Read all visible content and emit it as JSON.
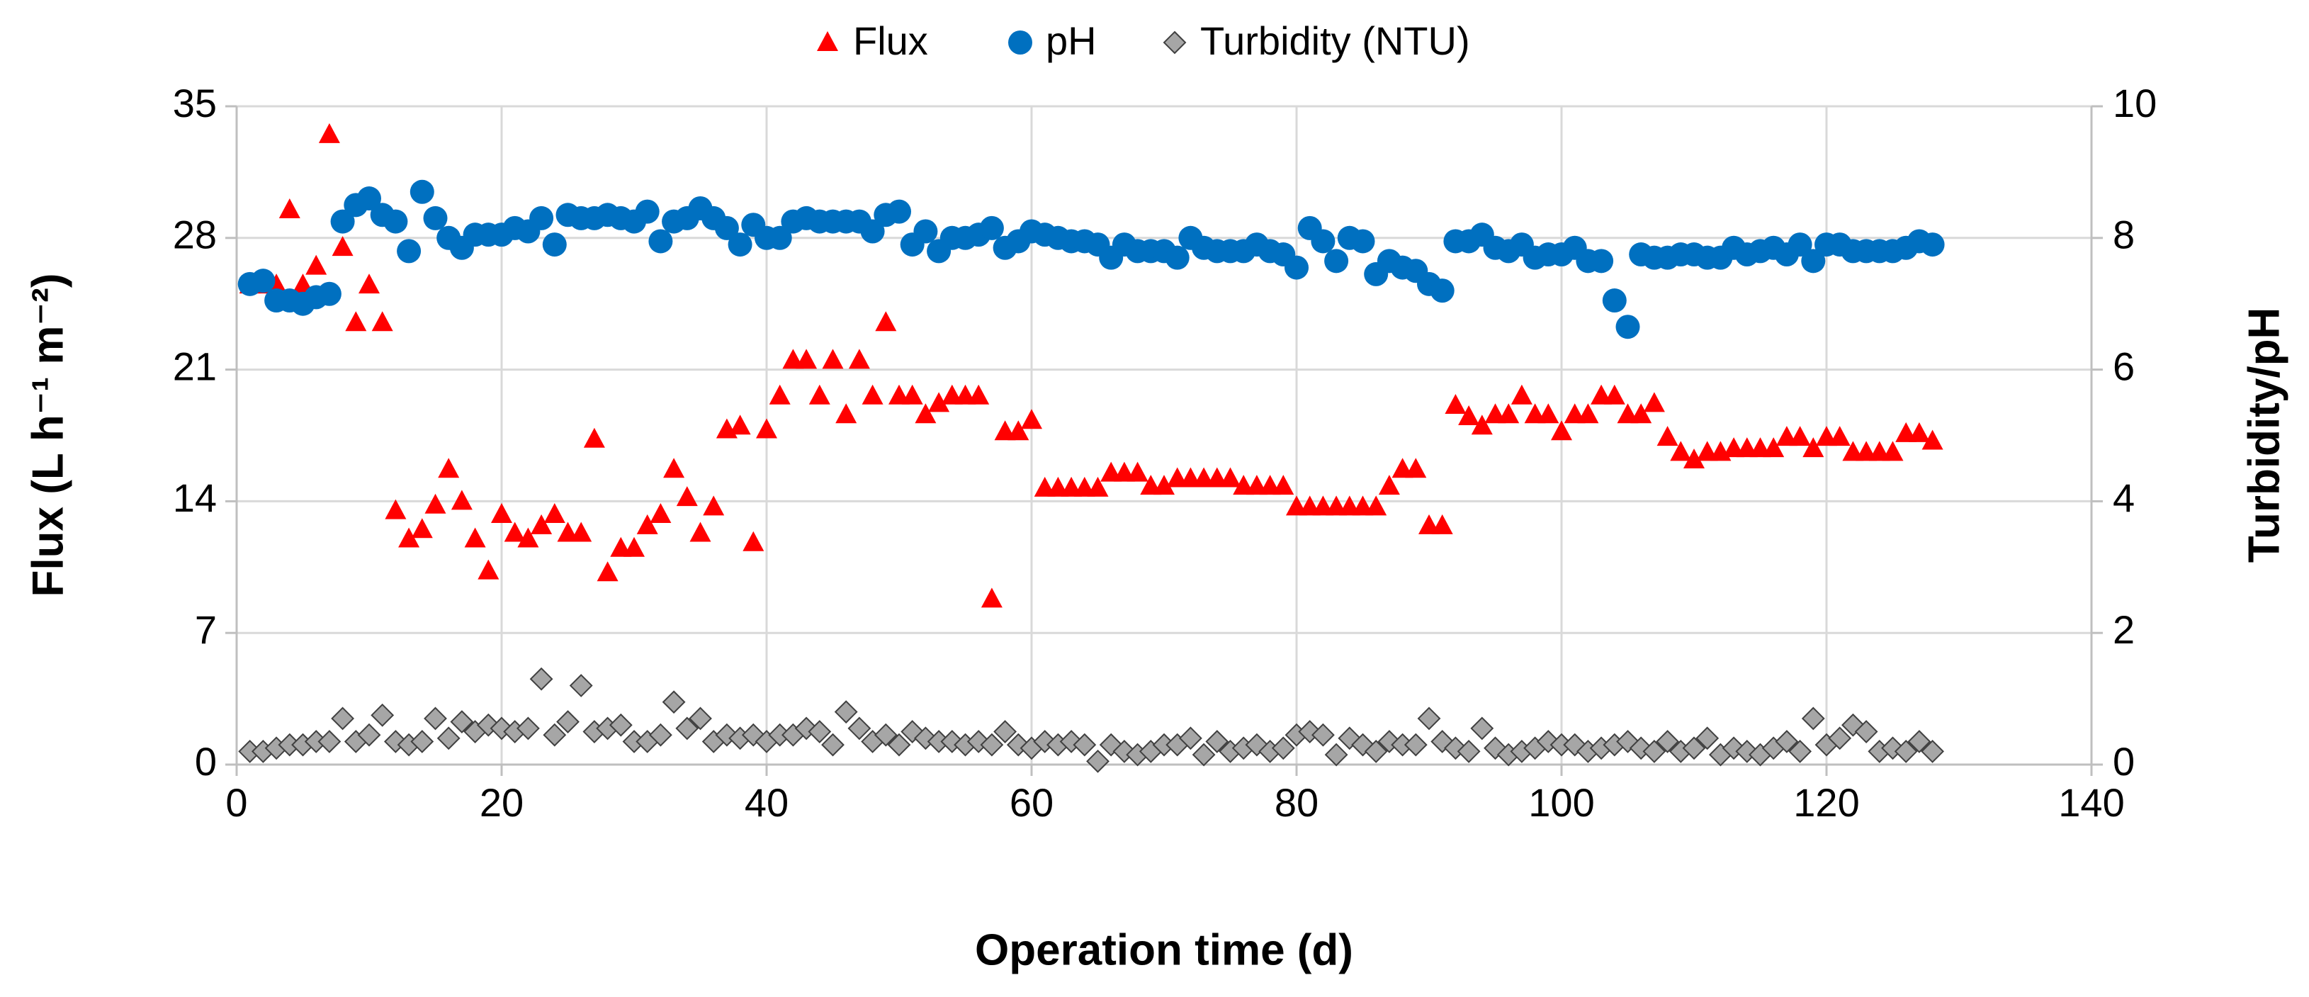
{
  "chart_data": {
    "type": "scatter",
    "xlabel": "Operation time (d)",
    "ylabel": "Flux (L h⁻¹ m⁻²)",
    "y2label": "Turbidity/pH",
    "x": [
      1,
      2,
      3,
      4,
      5,
      6,
      7,
      8,
      9,
      10,
      11,
      12,
      13,
      14,
      15,
      16,
      17,
      18,
      19,
      20,
      21,
      22,
      23,
      24,
      25,
      26,
      27,
      28,
      29,
      30,
      31,
      32,
      33,
      34,
      35,
      36,
      37,
      38,
      39,
      40,
      41,
      42,
      43,
      44,
      45,
      46,
      47,
      48,
      49,
      50,
      51,
      52,
      53,
      54,
      55,
      56,
      57,
      58,
      59,
      60,
      61,
      62,
      63,
      64,
      65,
      66,
      67,
      68,
      69,
      70,
      71,
      72,
      73,
      74,
      75,
      76,
      77,
      78,
      79,
      80,
      81,
      82,
      83,
      84,
      85,
      86,
      87,
      88,
      89,
      90,
      91,
      92,
      93,
      94,
      95,
      96,
      97,
      98,
      99,
      100,
      101,
      102,
      103,
      104,
      105,
      106,
      107,
      108,
      109,
      110,
      111,
      112,
      113,
      114,
      115,
      116,
      117,
      118,
      119,
      120,
      121,
      122,
      123,
      124,
      125,
      126,
      127,
      128
    ],
    "series": [
      {
        "name": "Flux",
        "color": "#ff0000",
        "marker": "triangle",
        "values": [
          25.5,
          25.5,
          25.5,
          29.5,
          25.5,
          26.5,
          33.5,
          27.5,
          23.5,
          25.5,
          23.5,
          13.5,
          12,
          12.5,
          13.8,
          15.7,
          14,
          12,
          10.3,
          13.3,
          12.3,
          12,
          12.7,
          13.3,
          12.3,
          12.3,
          17.3,
          10.2,
          11.5,
          11.5,
          12.7,
          13.3,
          15.7,
          14.2,
          12.3,
          13.7,
          17.8,
          18,
          11.8,
          17.8,
          19.6,
          21.5,
          21.5,
          19.6,
          21.5,
          18.6,
          21.5,
          19.6,
          23.5,
          19.6,
          19.6,
          18.6,
          19.2,
          19.6,
          19.6,
          19.6,
          8.8,
          17.7,
          17.7,
          18.3,
          14.7,
          14.7,
          14.7,
          14.7,
          14.7,
          15.5,
          15.5,
          15.5,
          14.8,
          14.8,
          15.2,
          15.2,
          15.2,
          15.2,
          15.2,
          14.8,
          14.8,
          14.8,
          14.8,
          13.7,
          13.7,
          13.7,
          13.7,
          13.7,
          13.7,
          13.7,
          14.8,
          15.7,
          15.7,
          12.7,
          12.7,
          19.1,
          18.5,
          18,
          18.6,
          18.6,
          19.6,
          18.6,
          18.6,
          17.7,
          18.6,
          18.6,
          19.6,
          19.6,
          18.6,
          18.6,
          19.2,
          17.4,
          16.6,
          16.2,
          16.6,
          16.6,
          16.8,
          16.8,
          16.8,
          16.8,
          17.4,
          17.4,
          16.8,
          17.4,
          17.4,
          16.6,
          16.6,
          16.6,
          16.6,
          17.6,
          17.6,
          17.2
        ]
      },
      {
        "name": "pH",
        "color": "#0070c0",
        "marker": "circle",
        "axis": "y2",
        "values": [
          7.3,
          7.35,
          7.05,
          7.05,
          7.0,
          7.1,
          7.15,
          8.25,
          8.5,
          8.6,
          8.35,
          8.25,
          7.8,
          8.7,
          8.3,
          8.0,
          7.85,
          8.05,
          8.05,
          8.05,
          8.15,
          8.1,
          8.3,
          7.9,
          8.35,
          8.3,
          8.3,
          8.35,
          8.3,
          8.25,
          8.4,
          7.95,
          8.25,
          8.3,
          8.45,
          8.3,
          8.15,
          7.9,
          8.2,
          8.0,
          8.0,
          8.25,
          8.3,
          8.25,
          8.25,
          8.25,
          8.25,
          8.1,
          8.35,
          8.4,
          7.9,
          8.1,
          7.8,
          8.0,
          8.0,
          8.05,
          8.15,
          7.85,
          7.95,
          8.1,
          8.05,
          8.0,
          7.95,
          7.95,
          7.9,
          7.7,
          7.9,
          7.8,
          7.8,
          7.8,
          7.7,
          8.0,
          7.85,
          7.8,
          7.8,
          7.8,
          7.9,
          7.8,
          7.75,
          7.55,
          8.15,
          7.95,
          7.65,
          8.0,
          7.95,
          7.45,
          7.65,
          7.55,
          7.5,
          7.3,
          7.2,
          7.95,
          7.95,
          8.05,
          7.85,
          7.8,
          7.9,
          7.7,
          7.75,
          7.75,
          7.85,
          7.65,
          7.65,
          7.05,
          6.65,
          7.75,
          7.7,
          7.7,
          7.75,
          7.75,
          7.7,
          7.7,
          7.85,
          7.75,
          7.8,
          7.85,
          7.75,
          7.9,
          7.65,
          7.9,
          7.9,
          7.8,
          7.8,
          7.8,
          7.8,
          7.85,
          7.95,
          7.9
        ]
      },
      {
        "name": "Turbidity (NTU)",
        "color": "#a6a6a6",
        "marker": "diamond",
        "axis": "y2",
        "values": [
          0.2,
          0.2,
          0.25,
          0.3,
          0.3,
          0.35,
          0.35,
          0.7,
          0.35,
          0.45,
          0.75,
          0.35,
          0.3,
          0.35,
          0.7,
          0.4,
          0.65,
          0.5,
          0.6,
          0.55,
          0.5,
          0.55,
          1.3,
          0.45,
          0.65,
          1.2,
          0.5,
          0.55,
          0.6,
          0.35,
          0.35,
          0.45,
          0.95,
          0.55,
          0.7,
          0.35,
          0.45,
          0.4,
          0.45,
          0.35,
          0.45,
          0.45,
          0.55,
          0.5,
          0.3,
          0.8,
          0.55,
          0.35,
          0.45,
          0.3,
          0.5,
          0.4,
          0.35,
          0.35,
          0.3,
          0.35,
          0.3,
          0.5,
          0.3,
          0.25,
          0.35,
          0.3,
          0.35,
          0.3,
          0.05,
          0.3,
          0.2,
          0.15,
          0.2,
          0.3,
          0.3,
          0.4,
          0.15,
          0.35,
          0.2,
          0.25,
          0.3,
          0.2,
          0.25,
          0.45,
          0.5,
          0.45,
          0.15,
          0.4,
          0.3,
          0.2,
          0.35,
          0.3,
          0.3,
          0.7,
          0.35,
          0.25,
          0.2,
          0.55,
          0.25,
          0.15,
          0.2,
          0.25,
          0.35,
          0.3,
          0.3,
          0.2,
          0.25,
          0.3,
          0.35,
          0.25,
          0.2,
          0.35,
          0.2,
          0.25,
          0.4,
          0.15,
          0.25,
          0.2,
          0.15,
          0.25,
          0.35,
          0.2,
          0.7,
          0.3,
          0.4,
          0.6,
          0.5,
          0.2,
          0.25,
          0.2,
          0.35,
          0.2
        ]
      }
    ],
    "xlim": [
      0,
      140
    ],
    "xticks": [
      0,
      20,
      40,
      60,
      80,
      100,
      120,
      140
    ],
    "ylim": [
      0,
      35
    ],
    "yticks": [
      0,
      7,
      14,
      21,
      28,
      35
    ],
    "y2lim": [
      0,
      10
    ],
    "y2ticks": [
      0,
      2,
      4,
      6,
      8,
      10
    ],
    "grid": true,
    "legend": "top"
  }
}
